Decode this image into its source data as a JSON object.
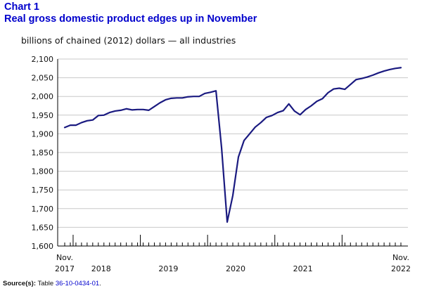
{
  "header": {
    "chart_number": "Chart 1",
    "title": "Real gross domestic product edges up in November"
  },
  "unit_label": "billions of chained (2012) dollars — all industries",
  "source": {
    "label": "Source(s):",
    "prefix": "Table",
    "table_link": "36-10-0434-01",
    "suffix": "."
  },
  "colors": {
    "line": "#1a1a80",
    "title": "#0000cc",
    "grid": "#c8c8c8"
  },
  "chart_data": {
    "type": "line",
    "title": "Real gross domestic product edges up in November",
    "ylabel": "billions of chained (2012) dollars — all industries",
    "xlabel": "",
    "ylim": [
      1600,
      2100
    ],
    "yticks": [
      1600,
      1650,
      1700,
      1750,
      1800,
      1850,
      1900,
      1950,
      2000,
      2050,
      2100
    ],
    "ytick_labels": [
      "1,600",
      "1,650",
      "1,700",
      "1,750",
      "1,800",
      "1,850",
      "1,900",
      "1,950",
      "2,000",
      "2,050",
      "2,100"
    ],
    "grid": true,
    "x_labels": [
      {
        "index": 0,
        "lines": [
          "Nov.",
          "2017"
        ]
      },
      {
        "index": 6.5,
        "lines": [
          "2018"
        ]
      },
      {
        "index": 18.5,
        "lines": [
          "2019"
        ]
      },
      {
        "index": 30.5,
        "lines": [
          "2020"
        ]
      },
      {
        "index": 42.5,
        "lines": [
          "2021"
        ]
      },
      {
        "index": 60,
        "lines": [
          "Nov.",
          "2022"
        ]
      }
    ],
    "year_boundaries": [
      2,
      14,
      26,
      38,
      50
    ],
    "series": [
      {
        "name": "Real GDP, all industries",
        "x": [
          "2017-11",
          "2017-12",
          "2018-01",
          "2018-02",
          "2018-03",
          "2018-04",
          "2018-05",
          "2018-06",
          "2018-07",
          "2018-08",
          "2018-09",
          "2018-10",
          "2018-11",
          "2018-12",
          "2019-01",
          "2019-02",
          "2019-03",
          "2019-04",
          "2019-05",
          "2019-06",
          "2019-07",
          "2019-08",
          "2019-09",
          "2019-10",
          "2019-11",
          "2019-12",
          "2020-01",
          "2020-02",
          "2020-03",
          "2020-04",
          "2020-05",
          "2020-06",
          "2020-07",
          "2020-08",
          "2020-09",
          "2020-10",
          "2020-11",
          "2020-12",
          "2021-01",
          "2021-02",
          "2021-03",
          "2021-04",
          "2021-05",
          "2021-06",
          "2021-07",
          "2021-08",
          "2021-09",
          "2021-10",
          "2021-11",
          "2021-12",
          "2022-01",
          "2022-02",
          "2022-03",
          "2022-04",
          "2022-05",
          "2022-06",
          "2022-07",
          "2022-08",
          "2022-09",
          "2022-10",
          "2022-11"
        ],
        "values": [
          1917,
          1923,
          1923,
          1930,
          1935,
          1937,
          1949,
          1950,
          1957,
          1961,
          1963,
          1967,
          1964,
          1965,
          1965,
          1963,
          1973,
          1983,
          1991,
          1995,
          1996,
          1996,
          1999,
          2000,
          2000,
          2008,
          2011,
          2015,
          1862,
          1664,
          1735,
          1838,
          1882,
          1900,
          1918,
          1930,
          1944,
          1949,
          1957,
          1962,
          1980,
          1961,
          1951,
          1965,
          1975,
          1987,
          1994,
          2010,
          2020,
          2022,
          2019,
          2032,
          2045,
          2048,
          2052,
          2057,
          2063,
          2068,
          2072,
          2075,
          2077
        ]
      }
    ]
  }
}
